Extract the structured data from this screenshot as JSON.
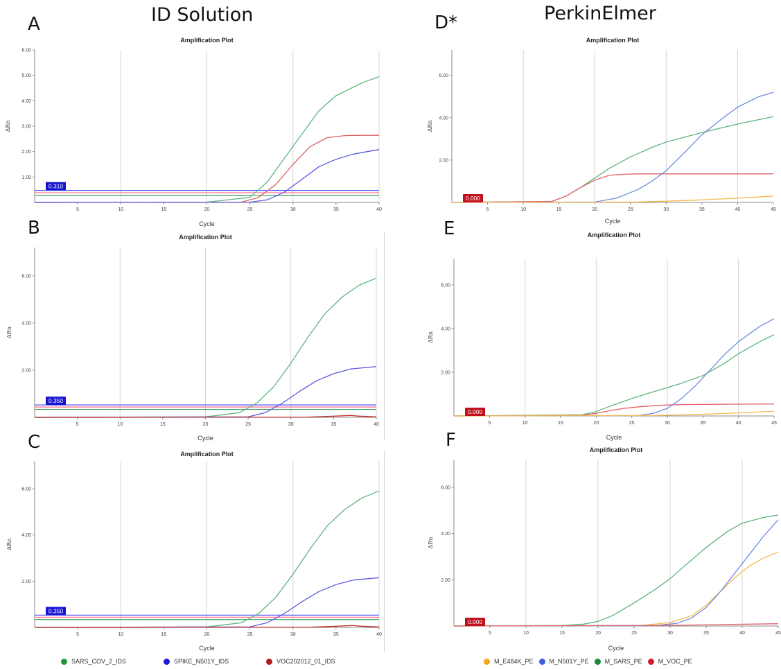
{
  "left_column_title": "ID Solution",
  "right_column_title": "PerkinElmer",
  "legend_ids": [
    {
      "label": "SARS_COV_2_IDS",
      "color": "#1a9a3c"
    },
    {
      "label": "SPIKE_N501Y_IDS",
      "color": "#1a1ad6"
    },
    {
      "label": "VOC202012_01_IDS",
      "color": "#b01a1a"
    }
  ],
  "legend_pe": [
    {
      "label": "M_E484K_PE",
      "color": "#f5a623"
    },
    {
      "label": "M_N501Y_PE",
      "color": "#3a5fe0"
    },
    {
      "label": "M_SARS_PE",
      "color": "#1a8a3a"
    },
    {
      "label": "M_VOC_PE",
      "color": "#d11a2a"
    }
  ],
  "chart_data": [
    {
      "id": "A",
      "panel_letter": "A",
      "type": "line",
      "title": "Amplification Plot",
      "xlabel": "Cycle",
      "ylabel": "ΔRn",
      "xlim": [
        0,
        40
      ],
      "ylim": [
        0,
        6
      ],
      "xticks": [
        "5",
        "10",
        "15",
        "20",
        "25",
        "30",
        "35",
        "40"
      ],
      "yticks": [
        "1.00",
        "2.00",
        "3.00",
        "4.00",
        "5.00",
        "6.00"
      ],
      "threshold_label": "0.310",
      "thresholds": [
        {
          "color": "#4d4dff",
          "y": 0.31
        },
        {
          "color": "#ff6b8a",
          "y": 0.22
        },
        {
          "color": "#3aa05a",
          "y": 0.12
        }
      ],
      "series": [
        {
          "color": "#5bb57c",
          "x": [
            0,
            20,
            25,
            27,
            30,
            33,
            35,
            38,
            40
          ],
          "y": [
            0,
            0.01,
            0.2,
            0.8,
            2.2,
            3.6,
            4.2,
            4.7,
            4.95
          ]
        },
        {
          "color": "#d9605e",
          "x": [
            0,
            24,
            26,
            28,
            30,
            32,
            34,
            36,
            38,
            40
          ],
          "y": [
            0,
            0.01,
            0.2,
            0.7,
            1.5,
            2.2,
            2.55,
            2.63,
            2.64,
            2.64
          ]
        },
        {
          "color": "#5a5ae0",
          "x": [
            0,
            25,
            27,
            29,
            31,
            33,
            35,
            37,
            40
          ],
          "y": [
            0,
            0.01,
            0.1,
            0.4,
            0.9,
            1.4,
            1.7,
            1.9,
            2.08
          ]
        }
      ]
    },
    {
      "id": "B",
      "panel_letter": "B",
      "type": "line",
      "title": "Amplification Plot",
      "xlabel": "Cycle",
      "ylabel": "ΔRn",
      "xlim": [
        0,
        40
      ],
      "ylim": [
        0,
        7.2
      ],
      "xticks": [
        "5",
        "10",
        "15",
        "20",
        "25",
        "30",
        "35",
        "40"
      ],
      "yticks": [
        "2.00",
        "4.00",
        "6.00"
      ],
      "threshold_label": "0.350",
      "thresholds": [
        {
          "color": "#4d4dff",
          "y": 0.35
        },
        {
          "color": "#ff6b8a",
          "y": 0.26
        },
        {
          "color": "#3aa05a",
          "y": 0.16
        }
      ],
      "series": [
        {
          "color": "#5bb57c",
          "x": [
            0,
            20,
            24,
            26,
            28,
            30,
            32,
            34,
            36,
            38,
            40
          ],
          "y": [
            0,
            0.02,
            0.2,
            0.6,
            1.3,
            2.3,
            3.4,
            4.4,
            5.1,
            5.6,
            5.9
          ]
        },
        {
          "color": "#5a5ae0",
          "x": [
            0,
            25,
            27,
            29,
            31,
            33,
            35,
            37,
            40
          ],
          "y": [
            0,
            0.02,
            0.2,
            0.6,
            1.1,
            1.55,
            1.85,
            2.05,
            2.15
          ]
        },
        {
          "color": "#c0302a",
          "x": [
            0,
            32,
            35,
            37,
            38,
            40
          ],
          "y": [
            0,
            0.01,
            0.05,
            0.08,
            0.05,
            0.02
          ]
        }
      ]
    },
    {
      "id": "C",
      "panel_letter": "C",
      "type": "line",
      "title": "Amplification Plot",
      "xlabel": "Cycle",
      "ylabel": "ΔRn",
      "xlim": [
        0,
        40
      ],
      "ylim": [
        0,
        7.2
      ],
      "xticks": [
        "5",
        "10",
        "15",
        "20",
        "25",
        "30",
        "35",
        "40"
      ],
      "yticks": [
        "2.00",
        "4.00",
        "6.00"
      ],
      "threshold_label": "0.350",
      "thresholds": [
        {
          "color": "#4d4dff",
          "y": 0.35
        },
        {
          "color": "#ff6b8a",
          "y": 0.26
        },
        {
          "color": "#3aa05a",
          "y": 0.16
        }
      ],
      "series": [
        {
          "color": "#5bb57c",
          "x": [
            0,
            20,
            24,
            26,
            28,
            30,
            32,
            34,
            36,
            38,
            40
          ],
          "y": [
            0,
            0.02,
            0.2,
            0.6,
            1.3,
            2.3,
            3.4,
            4.4,
            5.1,
            5.6,
            5.9
          ]
        },
        {
          "color": "#5a5ae0",
          "x": [
            0,
            25,
            27,
            29,
            31,
            33,
            35,
            37,
            40
          ],
          "y": [
            0,
            0.02,
            0.2,
            0.6,
            1.1,
            1.55,
            1.85,
            2.05,
            2.15
          ]
        },
        {
          "color": "#c0302a",
          "x": [
            0,
            32,
            35,
            37,
            38,
            40
          ],
          "y": [
            0,
            0.01,
            0.05,
            0.08,
            0.05,
            0.02
          ]
        }
      ]
    },
    {
      "id": "D",
      "panel_letter": "D*",
      "type": "line",
      "title": "Amplification Plot",
      "xlabel": "Cycle",
      "ylabel": "ΔRn",
      "xlim": [
        0,
        45
      ],
      "ylim": [
        0,
        7.2
      ],
      "xticks": [
        "5",
        "10",
        "15",
        "20",
        "25",
        "30",
        "35",
        "40",
        "45"
      ],
      "yticks": [
        "2.00",
        "4.00",
        "6.00"
      ],
      "threshold_label": "0.000",
      "thresholds": [],
      "series": [
        {
          "color": "#5ab57a",
          "x": [
            0,
            14,
            16,
            18,
            20,
            22,
            25,
            28,
            30,
            35,
            40,
            45
          ],
          "y": [
            0,
            0.05,
            0.3,
            0.7,
            1.15,
            1.6,
            2.15,
            2.6,
            2.85,
            3.3,
            3.7,
            4.05
          ]
        },
        {
          "color": "#e0606a",
          "x": [
            0,
            14,
            16,
            18,
            20,
            22,
            24,
            26,
            45
          ],
          "y": [
            0,
            0.05,
            0.3,
            0.7,
            1.05,
            1.28,
            1.33,
            1.35,
            1.35
          ]
        },
        {
          "color": "#6d8be0",
          "x": [
            0,
            20,
            23,
            26,
            28,
            30,
            33,
            35,
            38,
            40,
            43,
            45
          ],
          "y": [
            0,
            0.02,
            0.2,
            0.6,
            1.0,
            1.5,
            2.5,
            3.2,
            4.0,
            4.5,
            5.0,
            5.2
          ]
        },
        {
          "color": "#f5b84a",
          "x": [
            0,
            26,
            30,
            35,
            40,
            45
          ],
          "y": [
            0,
            0.02,
            0.06,
            0.12,
            0.2,
            0.3
          ]
        }
      ]
    },
    {
      "id": "E",
      "panel_letter": "E",
      "type": "line",
      "title": "Amplification Plot",
      "xlabel": "Cycle",
      "ylabel": "ΔRn",
      "xlim": [
        0,
        45
      ],
      "ylim": [
        0,
        7.2
      ],
      "xticks": [
        "5",
        "10",
        "15",
        "20",
        "25",
        "30",
        "35",
        "40",
        "45"
      ],
      "yticks": [
        "2.00",
        "4.00",
        "6.00"
      ],
      "threshold_label": "0.000",
      "thresholds": [],
      "series": [
        {
          "color": "#5ab57a",
          "x": [
            0,
            18,
            20,
            22,
            25,
            28,
            30,
            32,
            35,
            38,
            40,
            43,
            45
          ],
          "y": [
            0,
            0.05,
            0.2,
            0.45,
            0.8,
            1.1,
            1.3,
            1.5,
            1.85,
            2.4,
            2.85,
            3.4,
            3.72
          ]
        },
        {
          "color": "#e0606a",
          "x": [
            0,
            18,
            20,
            22,
            24,
            26,
            28,
            30,
            32,
            35,
            40,
            45
          ],
          "y": [
            0,
            0.03,
            0.12,
            0.25,
            0.35,
            0.42,
            0.47,
            0.5,
            0.52,
            0.53,
            0.54,
            0.55
          ]
        },
        {
          "color": "#6d8be0",
          "x": [
            0,
            26,
            28,
            30,
            32,
            34,
            36,
            38,
            40,
            43,
            45
          ],
          "y": [
            0,
            0.02,
            0.12,
            0.35,
            0.8,
            1.4,
            2.1,
            2.8,
            3.4,
            4.1,
            4.45
          ]
        },
        {
          "color": "#f5b84a",
          "x": [
            0,
            28,
            32,
            36,
            40,
            45
          ],
          "y": [
            0,
            0.02,
            0.05,
            0.09,
            0.14,
            0.22
          ]
        }
      ]
    },
    {
      "id": "F",
      "panel_letter": "F",
      "type": "line",
      "title": "Amplification Plot",
      "xlabel": "Cycle",
      "ylabel": "ΔRn",
      "xlim": [
        0,
        45
      ],
      "ylim": [
        0,
        7.2
      ],
      "xticks": [
        "5",
        "10",
        "15",
        "20",
        "25",
        "30",
        "35",
        "40",
        "45"
      ],
      "yticks": [
        "2.00",
        "4.00",
        "6.00"
      ],
      "threshold_label": "0.000",
      "thresholds": [],
      "series": [
        {
          "color": "#5ab57a",
          "x": [
            0,
            15,
            18,
            20,
            22,
            25,
            28,
            30,
            32,
            35,
            38,
            40,
            43,
            45
          ],
          "y": [
            0,
            0.02,
            0.08,
            0.2,
            0.45,
            1.0,
            1.6,
            2.05,
            2.6,
            3.4,
            4.1,
            4.45,
            4.7,
            4.8
          ]
        },
        {
          "color": "#f5b84a",
          "x": [
            0,
            26,
            30,
            33,
            35,
            37,
            39,
            41,
            43,
            45
          ],
          "y": [
            0,
            0.02,
            0.15,
            0.45,
            0.9,
            1.5,
            2.1,
            2.6,
            2.95,
            3.2
          ]
        },
        {
          "color": "#6d8be0",
          "x": [
            0,
            28,
            31,
            33,
            35,
            37,
            39,
            41,
            43,
            45
          ],
          "y": [
            0,
            0.02,
            0.12,
            0.35,
            0.8,
            1.5,
            2.3,
            3.1,
            3.9,
            4.6
          ]
        },
        {
          "color": "#e0606a",
          "x": [
            0,
            30,
            45
          ],
          "y": [
            0,
            0.03,
            0.1
          ]
        }
      ]
    }
  ]
}
